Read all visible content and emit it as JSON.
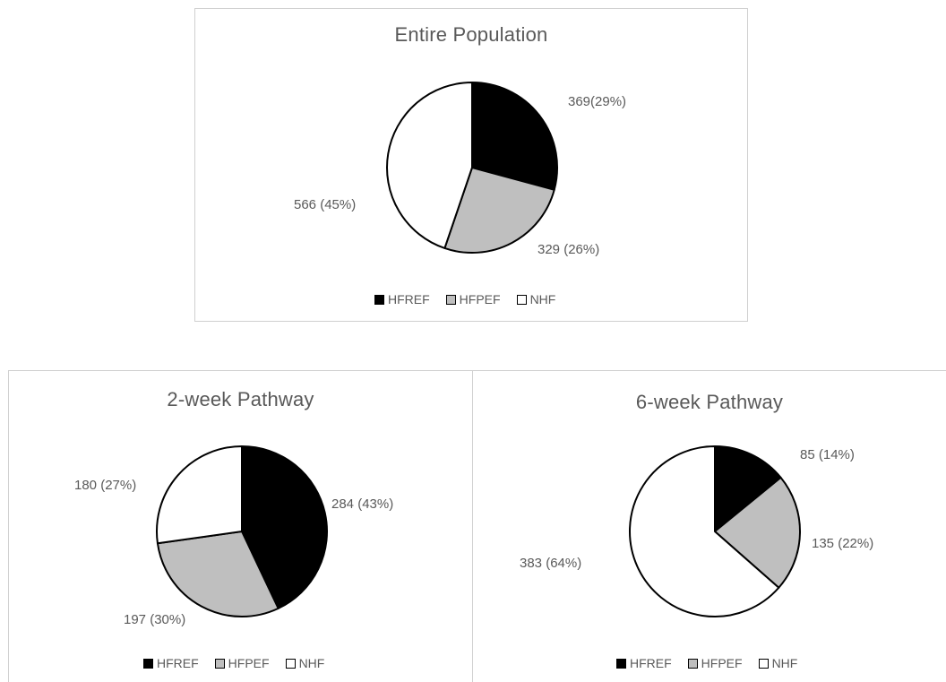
{
  "colors": {
    "HFREF": "#000000",
    "HFPEF": "#bfbfbf",
    "NHF": "#ffffff",
    "stroke": "#000000"
  },
  "legend": {
    "labels": [
      "HFREF",
      "HFPEF",
      "NHF"
    ]
  },
  "chart_data": [
    {
      "type": "pie",
      "title": "Entire Population",
      "categories": [
        "HFREF",
        "HFPEF",
        "NHF"
      ],
      "values": [
        369,
        329,
        566
      ],
      "labels": [
        "369(29%)",
        "329 (26%)",
        "566 (45%)"
      ],
      "legend_position": "bottom"
    },
    {
      "type": "pie",
      "title": "2-week Pathway",
      "categories": [
        "HFREF",
        "HFPEF",
        "NHF"
      ],
      "values": [
        284,
        197,
        180
      ],
      "labels": [
        "284 (43%)",
        "197 (30%)",
        "180 (27%)"
      ],
      "legend_position": "bottom"
    },
    {
      "type": "pie",
      "title": "6-week Pathway",
      "categories": [
        "HFREF",
        "HFPEF",
        "NHF"
      ],
      "values": [
        85,
        135,
        383
      ],
      "labels": [
        "85 (14%)",
        "135 (22%)",
        "383 (64%)"
      ],
      "legend_position": "bottom"
    }
  ]
}
